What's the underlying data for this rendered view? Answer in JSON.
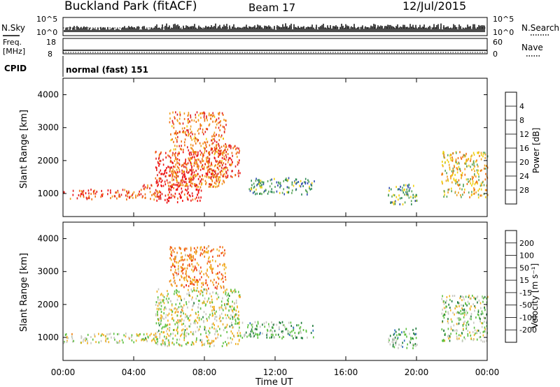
{
  "header": {
    "title": "Buckland Park (fitACF)",
    "beam": "Beam 17",
    "date": "12/Jul/2015"
  },
  "top_panels": {
    "nsky_label": "N.Sky",
    "nsearch_label": "N.Search",
    "power_scale": [
      "10^5",
      "10^0"
    ],
    "freq_label_1": "Freq.",
    "freq_label_2": "[MHz]",
    "freq_ticks": [
      "18",
      "8"
    ],
    "nave_label": "Nave",
    "nave_ticks": [
      "60",
      "0"
    ],
    "cpid_label": "CPID",
    "cpid_text": "normal (fast) 151"
  },
  "colors": {
    "power": [
      "#1010e8",
      "#2e4bb0",
      "#2f8a55",
      "#5aa65a",
      "#f0d010",
      "#f0a020",
      "#f07010",
      "#e02020",
      "#f01010"
    ],
    "velocity": [
      "#1a2ccc",
      "#2b6fbf",
      "#1e7a3a",
      "#5cc040",
      "#c8c8c0",
      "#f0b020",
      "#f08010",
      "#f04010",
      "#e00000"
    ]
  },
  "chart_data": [
    {
      "type": "heatmap",
      "ylabel": "Slant Range [km]",
      "yticks": [
        "1000",
        "2000",
        "3000",
        "4000"
      ],
      "ylim": [
        300,
        4500
      ],
      "xlim": [
        "00:00",
        "24:00"
      ],
      "colorbar_label": "Power [dB]",
      "colorbar_ticks": [
        "4",
        "8",
        "12",
        "16",
        "20",
        "24",
        "28"
      ],
      "regions": [
        {
          "t0": 0.0,
          "t1": 4.5,
          "r0": 850,
          "r1": 1150,
          "level": 0.78
        },
        {
          "t0": 4.5,
          "t1": 5.5,
          "r0": 800,
          "r1": 1300,
          "level": 0.72
        },
        {
          "t0": 5.2,
          "t1": 7.8,
          "r0": 750,
          "r1": 2300,
          "level": 0.9
        },
        {
          "t0": 6.0,
          "t1": 9.2,
          "r0": 1200,
          "r1": 3500,
          "level": 0.7
        },
        {
          "t0": 7.8,
          "t1": 10.0,
          "r0": 1500,
          "r1": 2500,
          "level": 0.8
        },
        {
          "t0": 10.5,
          "t1": 14.2,
          "r0": 1000,
          "r1": 1500,
          "level": 0.3
        },
        {
          "t0": 18.3,
          "t1": 20.0,
          "r0": 700,
          "r1": 1300,
          "level": 0.35
        },
        {
          "t0": 21.4,
          "t1": 24.0,
          "r0": 900,
          "r1": 2300,
          "level": 0.55
        }
      ]
    },
    {
      "type": "heatmap",
      "ylabel": "Slant Range [km]",
      "yticks": [
        "1000",
        "2000",
        "3000",
        "4000"
      ],
      "ylim": [
        300,
        4500
      ],
      "xlabel": "Time UT",
      "xticks": [
        "00:00",
        "04:00",
        "08:00",
        "12:00",
        "16:00",
        "20:00",
        "00:00"
      ],
      "colorbar_label": "Velocity [m s⁻¹]",
      "colorbar_ticks": [
        "200",
        "100",
        "50",
        "15",
        "-15",
        "-50",
        "-100",
        "-200"
      ],
      "regions": [
        {
          "t0": 0.0,
          "t1": 5.5,
          "r0": 850,
          "r1": 1150,
          "level": 0.5
        },
        {
          "t0": 5.2,
          "t1": 10.0,
          "r0": 750,
          "r1": 2500,
          "level": 0.5
        },
        {
          "t0": 6.0,
          "t1": 9.2,
          "r0": 2500,
          "r1": 3800,
          "level": 0.72
        },
        {
          "t0": 10.0,
          "t1": 14.2,
          "r0": 1000,
          "r1": 1500,
          "level": 0.36
        },
        {
          "t0": 18.3,
          "t1": 20.0,
          "r0": 700,
          "r1": 1300,
          "level": 0.36
        },
        {
          "t0": 21.4,
          "t1": 24.0,
          "r0": 900,
          "r1": 2300,
          "level": 0.45
        }
      ]
    }
  ]
}
